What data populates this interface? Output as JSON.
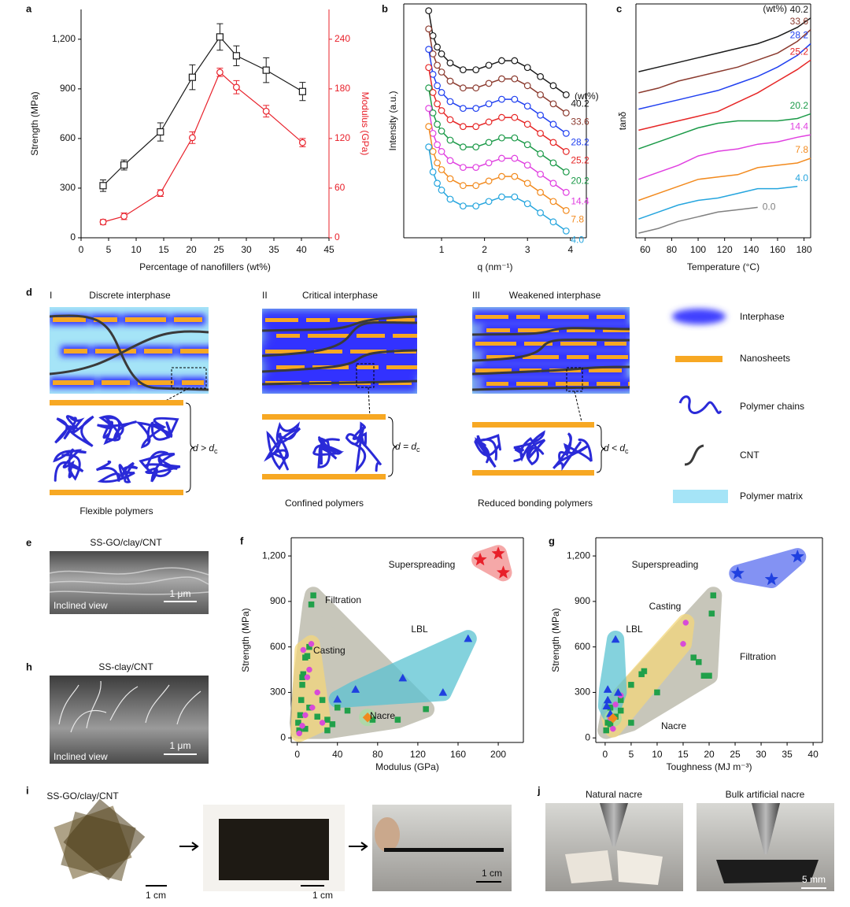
{
  "chart_data": [
    {
      "panel": "a",
      "type": "line",
      "x": [
        4,
        7.8,
        14.4,
        20.2,
        25.2,
        28.2,
        33.6,
        40.2
      ],
      "xlabel": "Percentage of nanofillers (wt%)",
      "ylabel": "Strength (MPa)",
      "y2label": "Modulus (GPa)",
      "xlim": [
        0,
        45
      ],
      "xticks": [
        0,
        5,
        10,
        15,
        20,
        25,
        30,
        35,
        40,
        45
      ],
      "ylim": [
        0,
        1380
      ],
      "yticks": [
        0,
        300,
        600,
        900,
        {
          "value": 1200,
          "label": "1,200"
        }
      ],
      "y2lim": [
        0,
        276
      ],
      "y2ticks": [
        0,
        60,
        120,
        180,
        240
      ],
      "y2color": "#e8202a",
      "series": [
        {
          "color": "#1a1a1a",
          "marker": "square",
          "values": [
            315,
            440,
            640,
            970,
            1214,
            1100,
            1013,
            884
          ],
          "errors": [
            35,
            30,
            55,
            75,
            80,
            60,
            75,
            55
          ]
        },
        {
          "color": "#e8202a",
          "marker": "circle",
          "axis": "y2",
          "values": [
            19,
            26,
            54,
            121,
            200,
            182,
            153,
            115
          ],
          "errors": [
            3,
            4,
            4,
            7,
            5,
            8,
            7,
            5
          ]
        }
      ]
    },
    {
      "panel": "b",
      "type": "line",
      "marker": "circle",
      "x": [
        0.7,
        0.8,
        0.9,
        1.0,
        1.2,
        1.5,
        1.8,
        2.1,
        2.4,
        2.7,
        3.0,
        3.3,
        3.6,
        3.9
      ],
      "xlabel": "q (nm⁻¹)",
      "ylabel": "Intensity (a.u.)",
      "legend_title": "(wt%)",
      "xlim": [
        0.12,
        4.37
      ],
      "xticks": [
        1,
        2,
        3,
        4
      ],
      "ylim": [
        -3,
        100
      ],
      "series": [
        {
          "name": "40.2",
          "color": "#1a1a1a",
          "values": [
            97,
            86,
            81,
            78,
            74,
            71,
            71,
            73,
            75,
            75,
            72,
            68,
            64,
            60
          ]
        },
        {
          "name": "33.6",
          "color": "#8b3a2e",
          "values": [
            89,
            78,
            73,
            70,
            66,
            63,
            63,
            65,
            67,
            67,
            64,
            60,
            56,
            52
          ]
        },
        {
          "name": "28.2",
          "color": "#2040f0",
          "values": [
            80,
            69,
            64,
            61,
            57,
            54,
            54,
            56,
            58,
            58,
            55,
            51,
            47,
            43
          ]
        },
        {
          "name": "25.2",
          "color": "#e62626",
          "values": [
            72,
            61,
            56,
            53,
            49,
            46,
            46,
            48,
            50,
            50,
            47,
            43,
            39,
            35
          ]
        },
        {
          "name": "20.2",
          "color": "#1b9a48",
          "values": [
            63,
            52,
            47,
            44,
            40,
            37,
            37,
            39,
            41,
            41,
            38,
            34,
            30,
            26
          ]
        },
        {
          "name": "14.4",
          "color": "#e040e0",
          "values": [
            54,
            43,
            38,
            35,
            31,
            28,
            28,
            30,
            32,
            32,
            29,
            25,
            21,
            17
          ]
        },
        {
          "name": "7.8",
          "color": "#f28a1e",
          "values": [
            46,
            35,
            30,
            27,
            23,
            20,
            20,
            22,
            24,
            24,
            21,
            17,
            13,
            9
          ]
        },
        {
          "name": "4.0",
          "color": "#25a5de",
          "values": [
            37,
            26,
            21,
            18,
            14,
            11,
            11,
            13,
            15,
            15,
            12,
            8,
            4,
            0
          ]
        }
      ]
    },
    {
      "panel": "c",
      "type": "line",
      "marker": "none",
      "x": [
        55,
        70,
        85,
        100,
        115,
        130,
        145,
        160,
        175,
        185
      ],
      "xlabel": "Temperature (°C)",
      "ylabel": "tanδ",
      "legend_title": "(wt%)",
      "xlim": [
        53,
        185
      ],
      "xticks": [
        60,
        80,
        100,
        120,
        140,
        160,
        180
      ],
      "ylim": [
        0,
        100
      ],
      "series": [
        {
          "name": "40.2",
          "color": "#1a1a1a",
          "values": [
            71,
            73,
            75,
            77,
            79,
            81,
            83,
            86,
            90,
            94
          ]
        },
        {
          "name": "33.6",
          "color": "#8b3a2e",
          "values": [
            62,
            64,
            67,
            69,
            71,
            73,
            76,
            79,
            84,
            89
          ]
        },
        {
          "name": "28.2",
          "color": "#2040f0",
          "values": [
            55,
            57,
            59,
            61,
            63,
            66,
            69,
            73,
            78,
            83
          ]
        },
        {
          "name": "25.2",
          "color": "#e62626",
          "values": [
            46,
            48,
            50,
            52,
            54,
            58,
            62,
            67,
            72,
            76
          ]
        },
        {
          "name": "20.2",
          "color": "#1b9a48",
          "values": [
            38,
            41,
            44,
            47,
            49,
            50,
            50,
            50,
            51,
            53
          ]
        },
        {
          "name": "14.4",
          "color": "#e040e0",
          "values": [
            25,
            28,
            31,
            35,
            37,
            38,
            40,
            41,
            43,
            44
          ]
        },
        {
          "name": "7.8",
          "color": "#f28a1e",
          "values": [
            16,
            19,
            22,
            25,
            26,
            27,
            30,
            31,
            32,
            34
          ]
        },
        {
          "name": "4.0",
          "color": "#25a5de",
          "values": [
            8,
            11,
            14,
            16,
            17,
            19,
            21,
            21,
            22,
            null
          ]
        },
        {
          "name": "0.0",
          "color": "#808080",
          "values": [
            2,
            4,
            7,
            9,
            11,
            12,
            13,
            null,
            null,
            null
          ]
        }
      ]
    },
    {
      "panel": "f",
      "type": "scatter",
      "xlabel": "Modulus (GPa)",
      "ylabel": "Strength (MPa)",
      "xlim": [
        -6,
        225
      ],
      "xticks": [
        0,
        40,
        80,
        120,
        160,
        200
      ],
      "ylim": [
        -30,
        1320
      ],
      "yticks": [
        0,
        300,
        600,
        900,
        {
          "value": 1200,
          "label": "1,200"
        }
      ],
      "series": [
        {
          "name": "Filtration",
          "marker": "square",
          "color": "#21a04a",
          "region_color": "#b5b4a4",
          "x": [
            1,
            2,
            3,
            4,
            5,
            6,
            8,
            10,
            12,
            14,
            16,
            5,
            8,
            20,
            25,
            30,
            35,
            30,
            40,
            50,
            75,
            100,
            128,
            12
          ],
          "values": [
            100,
            50,
            150,
            250,
            350,
            420,
            530,
            540,
            600,
            880,
            940,
            400,
            60,
            140,
            250,
            120,
            90,
            50,
            200,
            180,
            120,
            120,
            190,
            200
          ]
        },
        {
          "name": "Casting",
          "marker": "circle",
          "color": "#d84bd8",
          "region_color": "#f3d77c",
          "x": [
            2,
            5,
            8,
            10,
            12,
            14,
            20,
            25,
            6,
            15
          ],
          "values": [
            30,
            80,
            150,
            400,
            450,
            620,
            300,
            100,
            580,
            200
          ]
        },
        {
          "name": "LBL",
          "marker": "triangle",
          "color": "#1f40e0",
          "region_color": "#5cc3d2",
          "x": [
            40,
            58,
            105,
            145,
            170
          ],
          "values": [
            255,
            320,
            395,
            300,
            655
          ]
        },
        {
          "name": "Nacre",
          "marker": "diamond",
          "color": "#f08a1e",
          "region_color": "#a6dea2",
          "x": [
            70
          ],
          "values": [
            135
          ]
        },
        {
          "name": "Superspreading",
          "marker": "star",
          "color": "#e8202a",
          "region_color": "#f28c8c",
          "x": [
            182,
            200,
            205
          ],
          "values": [
            1175,
            1215,
            1090
          ]
        }
      ]
    },
    {
      "panel": "g",
      "type": "scatter",
      "xlabel": "Toughness (MJ m⁻³)",
      "ylabel": "Strength (MPa)",
      "xlim": [
        -1.8,
        41.8
      ],
      "xticks": [
        0,
        5,
        10,
        15,
        20,
        25,
        30,
        35,
        40
      ],
      "ylim": [
        -30,
        1320
      ],
      "yticks": [
        0,
        300,
        600,
        900,
        {
          "value": 1200,
          "label": "1,200"
        }
      ],
      "series": [
        {
          "name": "Filtration",
          "marker": "square",
          "color": "#21a04a",
          "region_color": "#b5b4a4",
          "x": [
            0.2,
            0.5,
            1,
            2,
            3,
            5,
            7,
            7.5,
            10,
            17,
            18,
            19,
            20,
            20.5,
            20.8,
            5,
            3,
            1
          ],
          "values": [
            50,
            100,
            200,
            140,
            250,
            350,
            420,
            440,
            300,
            530,
            500,
            410,
            410,
            820,
            940,
            100,
            180,
            90
          ]
        },
        {
          "name": "Casting",
          "marker": "circle",
          "color": "#d84bd8",
          "region_color": "#f3d77c",
          "x": [
            15,
            15.5,
            2,
            1,
            3,
            1.5
          ],
          "values": [
            620,
            760,
            220,
            130,
            280,
            60
          ]
        },
        {
          "name": "LBL",
          "marker": "triangle",
          "color": "#1f40e0",
          "region_color": "#5cc3d2",
          "x": [
            0.3,
            0.5,
            2,
            2.5,
            0.5,
            1
          ],
          "values": [
            210,
            320,
            650,
            300,
            250,
            160
          ]
        },
        {
          "name": "Nacre",
          "marker": "diamond",
          "color": "#f08a1e",
          "region_color": "#a6dea2",
          "x": [
            1.5
          ],
          "values": [
            130
          ]
        },
        {
          "name": "Superspreading",
          "marker": "star",
          "color": "#1f40e0",
          "region_color": "#5a6ef0",
          "x": [
            25.5,
            32,
            37
          ],
          "values": [
            1085,
            1045,
            1195
          ]
        }
      ]
    }
  ],
  "diagram": {
    "panel": "d",
    "schemes": [
      {
        "numeral": "I",
        "title": "Discrete interphase",
        "relation": "d > d",
        "subscript": "c",
        "caption": "Flexible polymers"
      },
      {
        "numeral": "II",
        "title": "Critical interphase",
        "relation": "d = d",
        "subscript": "c",
        "caption": "Confined polymers"
      },
      {
        "numeral": "III",
        "title": "Weakened interphase",
        "relation": "d < d",
        "subscript": "c",
        "caption": "Reduced bonding polymers"
      }
    ],
    "legend": [
      "Interphase",
      "Nanosheets",
      "Polymer chains",
      "CNT",
      "Polymer matrix"
    ]
  },
  "images": {
    "e": {
      "panel": "e",
      "title": "SS-GO/clay/CNT",
      "view": "Inclined view",
      "scale": "1 μm"
    },
    "h": {
      "panel": "h",
      "title": "SS-clay/CNT",
      "view": "Inclined view",
      "scale": "1 μm"
    },
    "i": {
      "panel": "i",
      "title": "SS-GO/clay/CNT",
      "scales": [
        "1 cm",
        "1 cm",
        "1 cm"
      ]
    },
    "j": {
      "panel": "j",
      "titles": [
        "Natural nacre",
        "Bulk artificial nacre"
      ],
      "scale": "5 mm"
    }
  }
}
